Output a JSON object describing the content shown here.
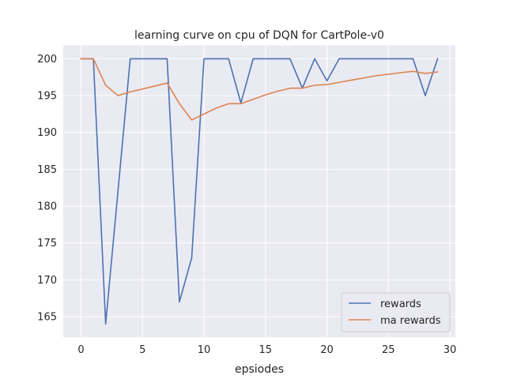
{
  "chart_data": {
    "type": "line",
    "title": "learning curve on cpu of DQN for CartPole-v0",
    "xlabel": "epsiodes",
    "ylabel": "",
    "xlim": [
      -1.45,
      30.45
    ],
    "ylim": [
      162.2,
      201.8
    ],
    "xticks": [
      0,
      5,
      10,
      15,
      20,
      25,
      30
    ],
    "yticks": [
      165,
      170,
      175,
      180,
      185,
      190,
      195,
      200
    ],
    "grid": true,
    "background": "#eaeaf2",
    "legend_position": "lower-right",
    "x": [
      0,
      1,
      2,
      3,
      4,
      5,
      6,
      7,
      8,
      9,
      10,
      11,
      12,
      13,
      14,
      15,
      16,
      17,
      18,
      19,
      20,
      21,
      22,
      23,
      24,
      25,
      26,
      27,
      28,
      29
    ],
    "series": [
      {
        "name": "rewards",
        "color": "#4c72b0",
        "values": [
          200,
          200,
          164,
          182,
          200,
          200,
          200,
          200,
          167,
          173,
          200,
          200,
          200,
          194,
          200,
          200,
          200,
          200,
          196,
          200,
          197,
          200,
          200,
          200,
          200,
          200,
          200,
          200,
          195,
          200
        ]
      },
      {
        "name": "ma rewards",
        "color": "#dd8452",
        "values": [
          200,
          200,
          196.4,
          195.0,
          195.5,
          195.9,
          196.3,
          196.7,
          193.9,
          191.7,
          192.5,
          193.3,
          193.9,
          193.9,
          194.5,
          195.1,
          195.6,
          196.0,
          196.0,
          196.4,
          196.5,
          196.8,
          197.1,
          197.4,
          197.7,
          197.9,
          198.1,
          198.3,
          198.0,
          198.2
        ]
      }
    ]
  }
}
